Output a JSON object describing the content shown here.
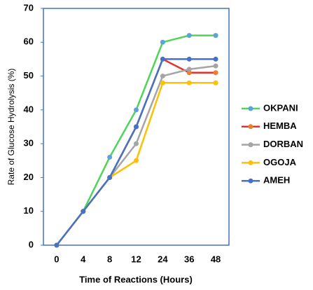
{
  "chart_data": {
    "type": "line",
    "x_label": "Time of Reactions (Hours)",
    "y_label": "Rate of Glucose Hydrolysis (%)",
    "categories": [
      "0",
      "4",
      "8",
      "12",
      "24",
      "36",
      "48"
    ],
    "ylim": [
      0,
      70
    ],
    "yticks": [
      0,
      10,
      20,
      30,
      40,
      50,
      60,
      70
    ],
    "legend": "right",
    "series": [
      {
        "name": "OKPANI",
        "color": "#4fd45a",
        "marker_color": "#5ba3d9",
        "values": [
          0,
          10,
          26,
          40,
          60,
          62,
          62
        ]
      },
      {
        "name": "HEMBA",
        "color": "#e8302a",
        "marker_color": "#ed7d31",
        "values": [
          0,
          10,
          20,
          35,
          55,
          51,
          51
        ]
      },
      {
        "name": "DORBAN",
        "color": "#a5a5a5",
        "marker_color": "#a5a5a5",
        "values": [
          0,
          10,
          20,
          30,
          50,
          52,
          53
        ]
      },
      {
        "name": "OGOJA",
        "color": "#ffc000",
        "marker_color": "#ffc000",
        "values": [
          0,
          10,
          20,
          25,
          48,
          48,
          48
        ]
      },
      {
        "name": "AMEH",
        "color": "#4472c4",
        "marker_color": "#4472c4",
        "values": [
          0,
          10,
          20,
          35,
          55,
          55,
          55
        ]
      }
    ]
  }
}
